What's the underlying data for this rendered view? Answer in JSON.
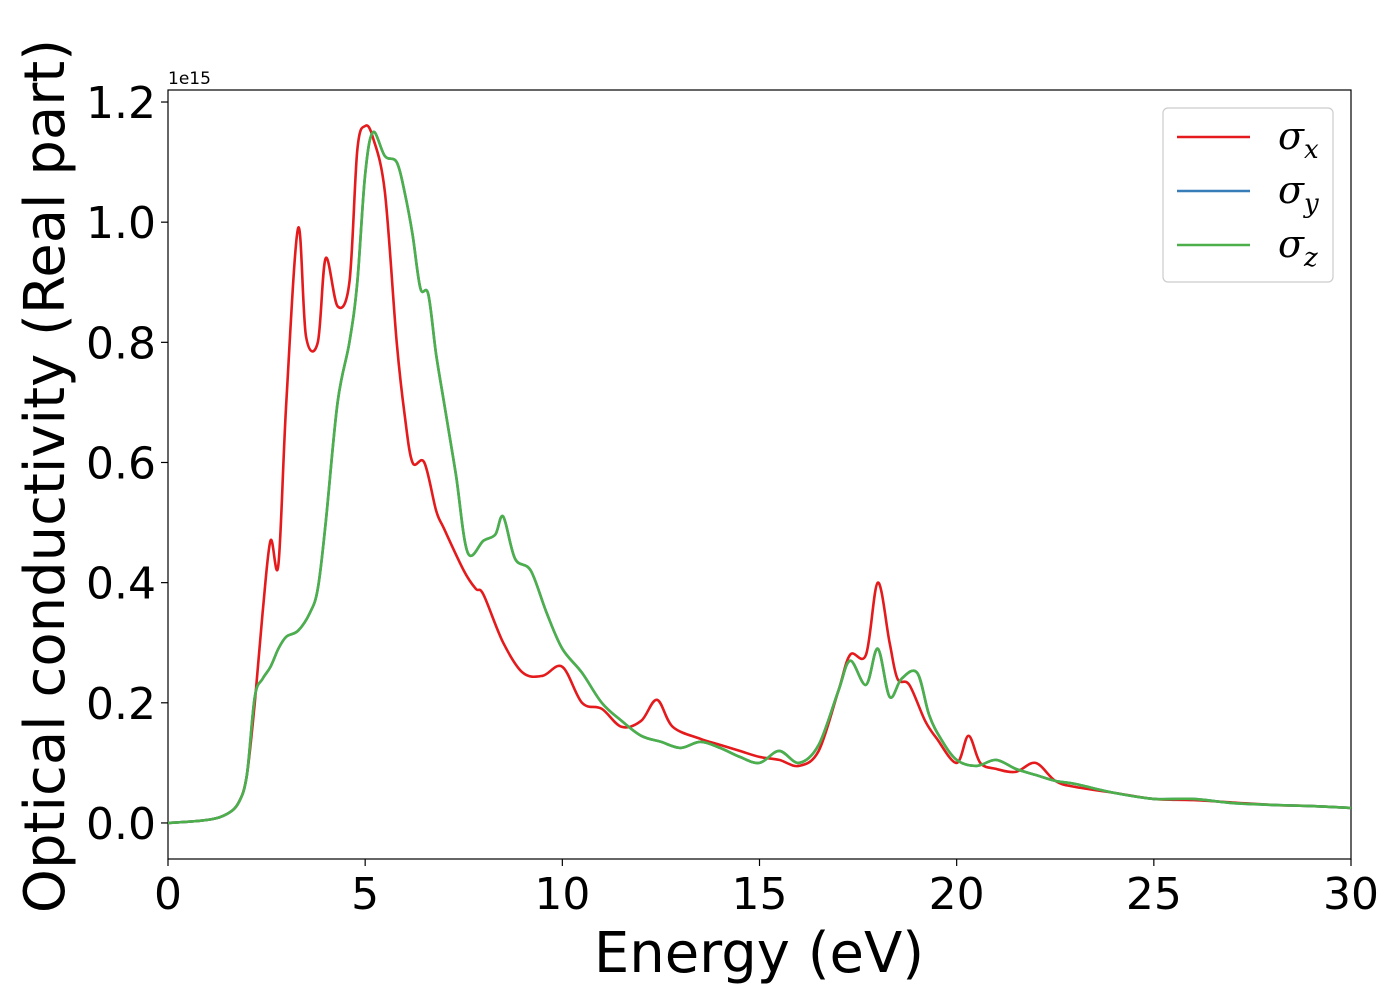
{
  "chart_data": {
    "type": "line",
    "title": "",
    "xlabel": "Energy (eV)",
    "ylabel": "Optical conductivity (Real part)",
    "y_offset_text": "1e15",
    "xlim": [
      0,
      30
    ],
    "ylim": [
      -0.06,
      1.22
    ],
    "xticks": [
      0,
      5,
      10,
      15,
      20,
      25,
      30
    ],
    "xtick_labels": [
      "0",
      "5",
      "10",
      "15",
      "20",
      "25",
      "30"
    ],
    "yticks": [
      0.0,
      0.2,
      0.4,
      0.6,
      0.8,
      1.0,
      1.2
    ],
    "ytick_labels": [
      "0.0",
      "0.2",
      "0.4",
      "0.6",
      "0.8",
      "1.0",
      "1.2"
    ],
    "grid": false,
    "legend_position": "top-right",
    "series": [
      {
        "name": "σx",
        "legend": {
          "base": "σ",
          "sub": "x"
        },
        "color": "#e41a1c",
        "x": [
          0,
          1,
          1.5,
          1.8,
          2.0,
          2.2,
          2.4,
          2.6,
          2.8,
          3.0,
          3.3,
          3.5,
          3.8,
          4.0,
          4.3,
          4.6,
          4.8,
          5.0,
          5.2,
          5.5,
          5.8,
          6.0,
          6.2,
          6.5,
          6.8,
          7.0,
          7.5,
          7.8,
          8.0,
          8.5,
          9.0,
          9.5,
          10.0,
          10.5,
          11.0,
          11.5,
          12.0,
          12.4,
          12.8,
          13.5,
          14.0,
          14.5,
          15.0,
          15.5,
          16.0,
          16.5,
          17.0,
          17.3,
          17.7,
          18.0,
          18.3,
          18.5,
          18.8,
          19.2,
          19.5,
          20.0,
          20.3,
          20.6,
          21.0,
          21.5,
          22.0,
          22.5,
          23.0,
          24.0,
          25.0,
          26.0,
          27.0,
          28.0,
          29.0,
          30.0
        ],
        "y": [
          0.0,
          0.005,
          0.015,
          0.035,
          0.08,
          0.2,
          0.35,
          0.47,
          0.43,
          0.7,
          0.99,
          0.81,
          0.8,
          0.94,
          0.86,
          0.9,
          1.12,
          1.16,
          1.14,
          1.05,
          0.8,
          0.68,
          0.6,
          0.6,
          0.52,
          0.49,
          0.42,
          0.39,
          0.38,
          0.3,
          0.25,
          0.245,
          0.26,
          0.2,
          0.19,
          0.16,
          0.17,
          0.205,
          0.16,
          0.14,
          0.13,
          0.12,
          0.11,
          0.105,
          0.095,
          0.12,
          0.22,
          0.28,
          0.28,
          0.4,
          0.3,
          0.24,
          0.23,
          0.17,
          0.14,
          0.1,
          0.145,
          0.1,
          0.09,
          0.085,
          0.1,
          0.07,
          0.06,
          0.05,
          0.04,
          0.038,
          0.034,
          0.03,
          0.028,
          0.025
        ]
      },
      {
        "name": "σy",
        "legend": {
          "base": "σ",
          "sub": "y"
        },
        "color": "#377eb8",
        "x": [
          0,
          1,
          1.5,
          1.8,
          2.0,
          2.2,
          2.4,
          2.6,
          2.8,
          3.0,
          3.3,
          3.6,
          3.8,
          4.0,
          4.3,
          4.6,
          4.8,
          5.0,
          5.2,
          5.5,
          5.8,
          6.0,
          6.2,
          6.4,
          6.6,
          6.8,
          7.0,
          7.3,
          7.6,
          8.0,
          8.3,
          8.5,
          8.8,
          9.2,
          9.6,
          10.0,
          10.5,
          11.0,
          11.5,
          12.0,
          12.5,
          13.0,
          13.5,
          14.0,
          14.5,
          15.0,
          15.5,
          16.0,
          16.5,
          17.0,
          17.3,
          17.7,
          18.0,
          18.3,
          18.6,
          19.0,
          19.3,
          19.6,
          20.0,
          20.5,
          21.0,
          21.5,
          22.0,
          22.5,
          23.0,
          24.0,
          25.0,
          26.0,
          27.0,
          28.0,
          29.0,
          30.0
        ],
        "y": [
          0.0,
          0.005,
          0.015,
          0.035,
          0.08,
          0.21,
          0.24,
          0.26,
          0.29,
          0.31,
          0.32,
          0.35,
          0.39,
          0.5,
          0.7,
          0.8,
          0.9,
          1.08,
          1.15,
          1.11,
          1.1,
          1.05,
          0.98,
          0.89,
          0.88,
          0.78,
          0.7,
          0.58,
          0.45,
          0.47,
          0.48,
          0.51,
          0.44,
          0.42,
          0.35,
          0.29,
          0.25,
          0.2,
          0.17,
          0.145,
          0.135,
          0.125,
          0.135,
          0.125,
          0.11,
          0.1,
          0.12,
          0.1,
          0.13,
          0.22,
          0.27,
          0.23,
          0.29,
          0.21,
          0.24,
          0.25,
          0.18,
          0.14,
          0.105,
          0.095,
          0.105,
          0.09,
          0.08,
          0.07,
          0.065,
          0.05,
          0.04,
          0.04,
          0.033,
          0.03,
          0.028,
          0.025
        ]
      },
      {
        "name": "σz",
        "legend": {
          "base": "σ",
          "sub": "z"
        },
        "color": "#4daf4a",
        "x": [
          0,
          1,
          1.5,
          1.8,
          2.0,
          2.2,
          2.4,
          2.6,
          2.8,
          3.0,
          3.3,
          3.6,
          3.8,
          4.0,
          4.3,
          4.6,
          4.8,
          5.0,
          5.2,
          5.5,
          5.8,
          6.0,
          6.2,
          6.4,
          6.6,
          6.8,
          7.0,
          7.3,
          7.6,
          8.0,
          8.3,
          8.5,
          8.8,
          9.2,
          9.6,
          10.0,
          10.5,
          11.0,
          11.5,
          12.0,
          12.5,
          13.0,
          13.5,
          14.0,
          14.5,
          15.0,
          15.5,
          16.0,
          16.5,
          17.0,
          17.3,
          17.7,
          18.0,
          18.3,
          18.6,
          19.0,
          19.3,
          19.6,
          20.0,
          20.5,
          21.0,
          21.5,
          22.0,
          22.5,
          23.0,
          24.0,
          25.0,
          26.0,
          27.0,
          28.0,
          29.0,
          30.0
        ],
        "y": [
          0.0,
          0.005,
          0.015,
          0.035,
          0.08,
          0.21,
          0.24,
          0.26,
          0.29,
          0.31,
          0.32,
          0.35,
          0.39,
          0.5,
          0.7,
          0.8,
          0.9,
          1.08,
          1.15,
          1.11,
          1.1,
          1.05,
          0.98,
          0.89,
          0.88,
          0.78,
          0.7,
          0.58,
          0.45,
          0.47,
          0.48,
          0.51,
          0.44,
          0.42,
          0.35,
          0.29,
          0.25,
          0.2,
          0.17,
          0.145,
          0.135,
          0.125,
          0.135,
          0.125,
          0.11,
          0.1,
          0.12,
          0.1,
          0.13,
          0.22,
          0.27,
          0.23,
          0.29,
          0.21,
          0.24,
          0.25,
          0.18,
          0.14,
          0.105,
          0.095,
          0.105,
          0.09,
          0.08,
          0.07,
          0.065,
          0.05,
          0.04,
          0.04,
          0.033,
          0.03,
          0.028,
          0.025
        ]
      }
    ]
  }
}
